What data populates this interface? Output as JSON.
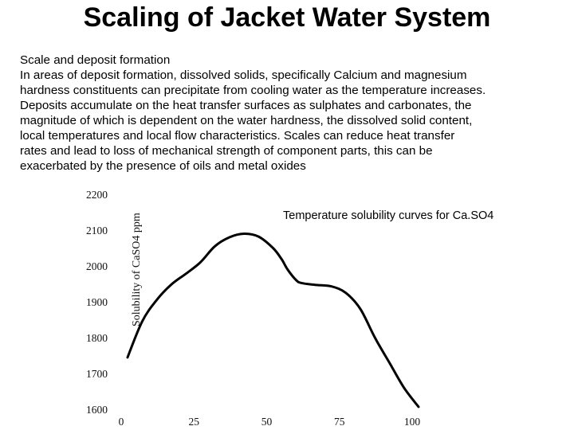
{
  "slide": {
    "title": "Scaling of Jacket Water System",
    "heading": "Scale and deposit formation",
    "lines": [
      "In areas of deposit formation, dissolved solids, specifically Calcium and magnesium",
      "hardness constituents can precipitate from cooling water as the temperature increases.",
      "Deposits accumulate on the heat transfer surfaces as sulphates and carbonates, the",
      "magnitude of which is dependent on the water hardness, the dissolved solid content,",
      "local temperatures and local flow characteristics. Scales can reduce heat transfer",
      "rates and lead to loss of mechanical strength of component parts, this can be",
      "exacerbated by the presence of oils and metal oxides"
    ]
  },
  "chart_data": {
    "type": "line",
    "title": "Temperature solubility curves for Ca.SO4",
    "ylabel": "Solubility of CaSO4 ppm",
    "xlabel": "",
    "xlim": [
      0,
      100
    ],
    "ylim": [
      1600,
      2200
    ],
    "x_ticks": [
      "0",
      "25",
      "50",
      "75",
      "100"
    ],
    "y_ticks": [
      "2200",
      "2100",
      "2000",
      "1900",
      "1800",
      "1700",
      "1600"
    ],
    "grid": false,
    "series": [
      {
        "x": [
          0,
          5,
          10,
          15,
          20,
          25,
          30,
          35,
          40,
          45,
          50,
          53,
          55,
          58,
          60,
          65,
          70,
          75,
          80,
          85,
          90,
          95,
          100
        ],
        "y": [
          1745,
          1845,
          1905,
          1948,
          1978,
          2010,
          2055,
          2080,
          2090,
          2082,
          2050,
          2018,
          1990,
          1960,
          1952,
          1947,
          1943,
          1925,
          1880,
          1800,
          1730,
          1660,
          1607
        ],
        "color": "#000000"
      }
    ]
  }
}
